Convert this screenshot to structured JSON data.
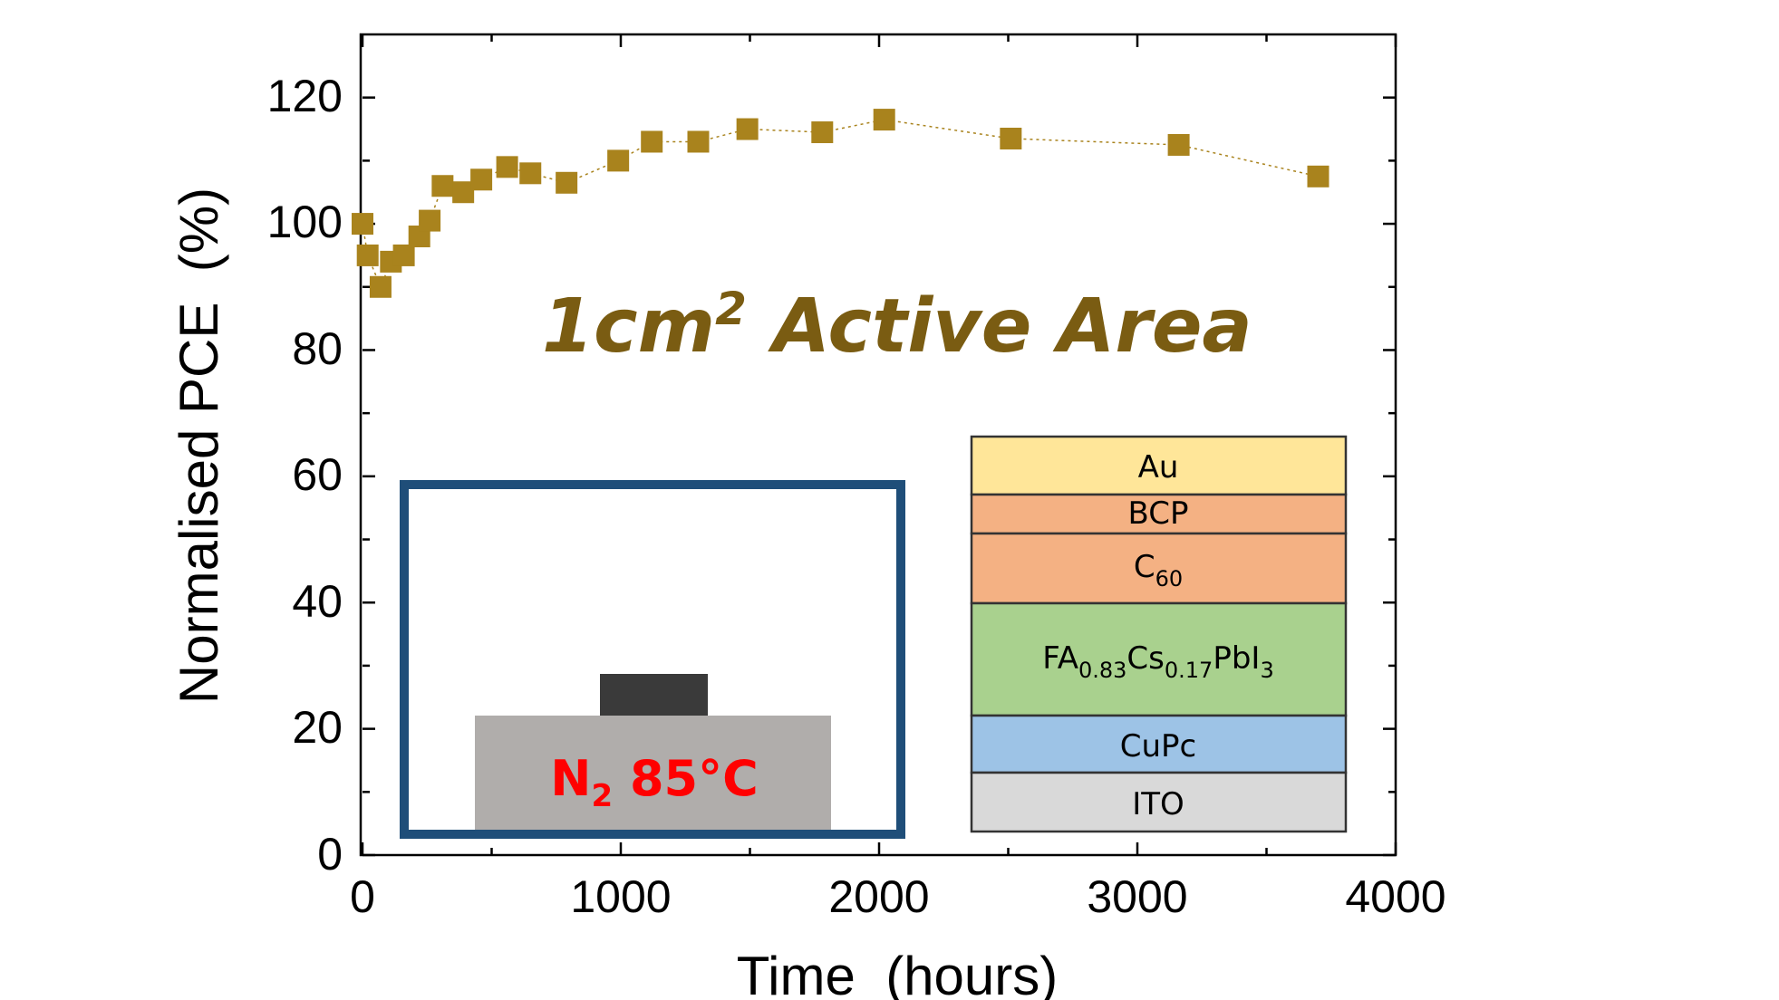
{
  "chart_data": {
    "type": "scatter",
    "xlabel": "Time  (hours)",
    "ylabel": "Normalised PCE  (%)",
    "xlim": [
      0,
      4000
    ],
    "ylim": [
      0,
      130
    ],
    "x_ticks": [
      "0",
      "1000",
      "2000",
      "3000",
      "4000"
    ],
    "y_ticks": [
      "0",
      "20",
      "40",
      "60",
      "80",
      "100",
      "120"
    ],
    "x_tick_values": [
      0,
      1000,
      2000,
      3000,
      4000
    ],
    "y_tick_values": [
      0,
      20,
      40,
      60,
      80,
      100,
      120
    ],
    "series": [
      {
        "color": "#a9831d",
        "marker": "square",
        "line": "dotted",
        "x": [
          0,
          20,
          70,
          110,
          160,
          220,
          260,
          310,
          390,
          460,
          560,
          650,
          790,
          990,
          1120,
          1300,
          1490,
          1780,
          2020,
          2510,
          3160,
          3700
        ],
        "y": [
          100,
          95,
          90,
          94,
          95,
          98,
          100.5,
          106,
          105,
          107,
          109,
          108,
          106.5,
          110,
          113,
          113,
          115,
          114.5,
          116.5,
          113.5,
          112.5,
          107.5
        ]
      }
    ],
    "annotations": {
      "active_area_prefix": "1cm",
      "active_area_sup": "2",
      "active_area_suffix": " Active Area",
      "condition_base": "N",
      "condition_sub": "2",
      "condition_suffix": " 85°C"
    },
    "device_stack": {
      "au": "Au",
      "bcp": "BCP",
      "c60_base": "C",
      "c60_sub": "60",
      "perov_fa": "FA",
      "perov_fa_sub": "0.83",
      "perov_cs": "Cs",
      "perov_cs_sub": "0.17",
      "perov_pbi": "PbI",
      "perov_i_sub": "3",
      "cupc": "CuPc",
      "ito": "ITO"
    },
    "colors": {
      "marker": "#a9831d",
      "annotation": "#7a5c12",
      "box_border": "#1f4e79",
      "substrate": "#b0adab",
      "device": "#3a3a3a",
      "au": "#ffe699",
      "bcp": "#f4b183",
      "c60": "#f4b183",
      "perovskite": "#a9d18e",
      "cupc": "#9dc3e6",
      "ito": "#d9d9d9",
      "condition_text": "#ff0000"
    }
  }
}
